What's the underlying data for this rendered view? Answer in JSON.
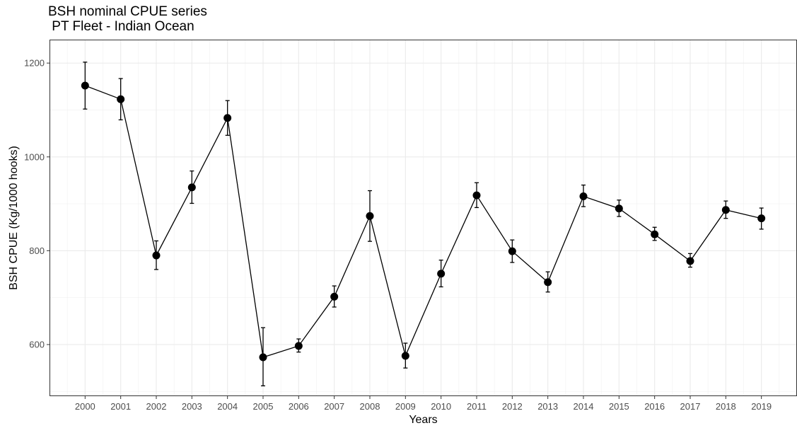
{
  "chart_data": {
    "type": "line",
    "title": "BSH nominal CPUE series\n PT Fleet - Indian Ocean",
    "xlabel": "Years",
    "ylabel": "BSH CPUE (Kg/1000 hooks)",
    "x": [
      2000,
      2001,
      2002,
      2003,
      2004,
      2005,
      2006,
      2007,
      2008,
      2009,
      2010,
      2011,
      2012,
      2013,
      2014,
      2015,
      2016,
      2017,
      2018,
      2019
    ],
    "series": [
      {
        "values": [
          1152,
          1123,
          790,
          935,
          1083,
          573,
          597,
          702,
          874,
          576,
          751,
          918,
          799,
          733,
          916,
          890,
          835,
          778,
          887,
          869
        ],
        "lower": [
          1102,
          1079,
          760,
          901,
          1046,
          512,
          584,
          680,
          820,
          550,
          723,
          892,
          775,
          712,
          894,
          873,
          822,
          765,
          869,
          846
        ],
        "upper": [
          1202,
          1167,
          821,
          970,
          1120,
          636,
          612,
          725,
          928,
          603,
          780,
          945,
          823,
          755,
          940,
          908,
          850,
          794,
          906,
          891
        ]
      }
    ],
    "yticks": [
      600,
      800,
      1000,
      1200
    ],
    "ylim": [
      490,
      1250
    ],
    "xlim": [
      1999,
      2020
    ],
    "grid": true,
    "legend": "none"
  }
}
